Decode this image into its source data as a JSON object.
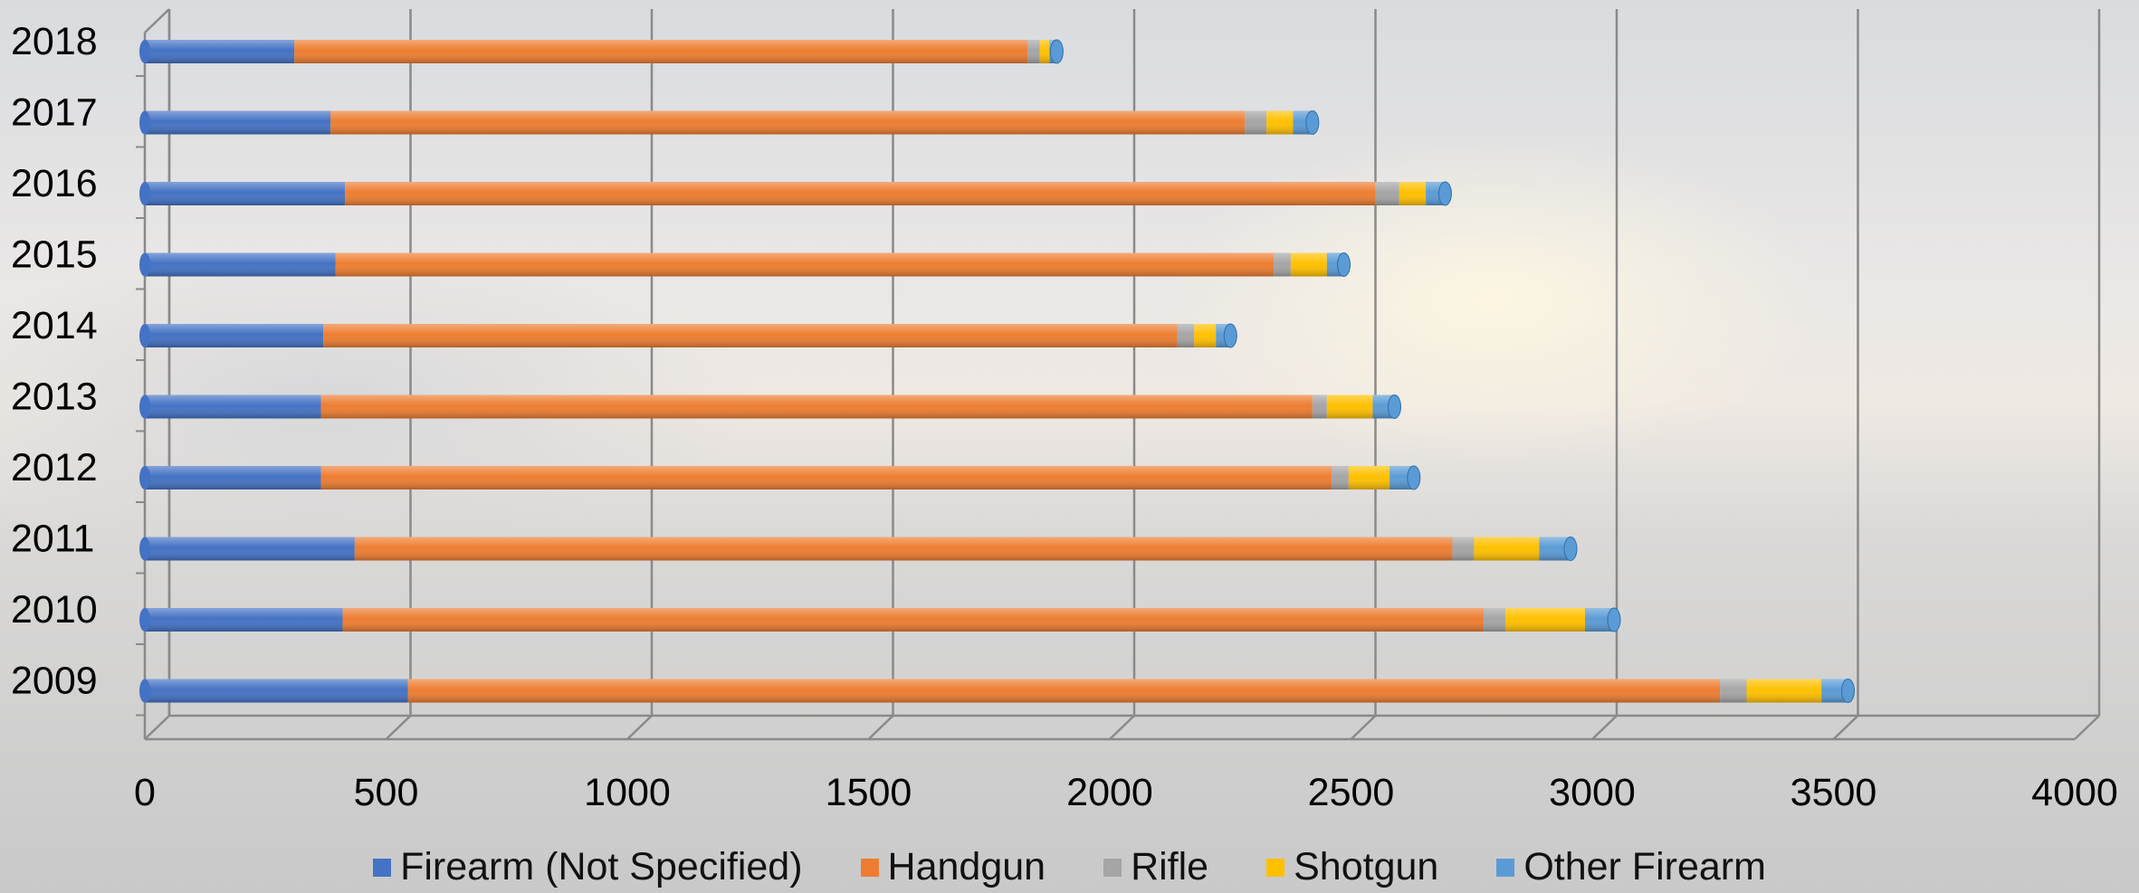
{
  "chart_data": {
    "type": "bar",
    "orientation": "horizontal",
    "stacked": true,
    "categories": [
      "2018",
      "2017",
      "2016",
      "2015",
      "2014",
      "2013",
      "2012",
      "2011",
      "2010",
      "2009"
    ],
    "series": [
      {
        "name": "Firearm (Not Specified)",
        "color": "#4472c4",
        "values": [
          310,
          385,
          415,
          395,
          370,
          365,
          365,
          435,
          410,
          545
        ]
      },
      {
        "name": "Handgun",
        "color": "#ed7d31",
        "values": [
          1520,
          1895,
          2135,
          1945,
          1770,
          2055,
          2095,
          2275,
          2365,
          2720
        ]
      },
      {
        "name": "Rifle",
        "color": "#a5a5a5",
        "values": [
          25,
          45,
          50,
          35,
          35,
          30,
          35,
          45,
          45,
          55
        ]
      },
      {
        "name": "Shotgun",
        "color": "#ffc000",
        "values": [
          20,
          55,
          55,
          75,
          45,
          95,
          85,
          135,
          165,
          155
        ]
      },
      {
        "name": "Other Firearm",
        "color": "#5b9bd5",
        "values": [
          15,
          40,
          40,
          35,
          30,
          45,
          50,
          65,
          60,
          55
        ]
      }
    ],
    "xlim": [
      0,
      4000
    ],
    "xticks": [
      "0",
      "500",
      "1000",
      "1500",
      "2000",
      "2500",
      "3000",
      "3500",
      "4000"
    ],
    "grid": true,
    "legend_position": "bottom"
  }
}
